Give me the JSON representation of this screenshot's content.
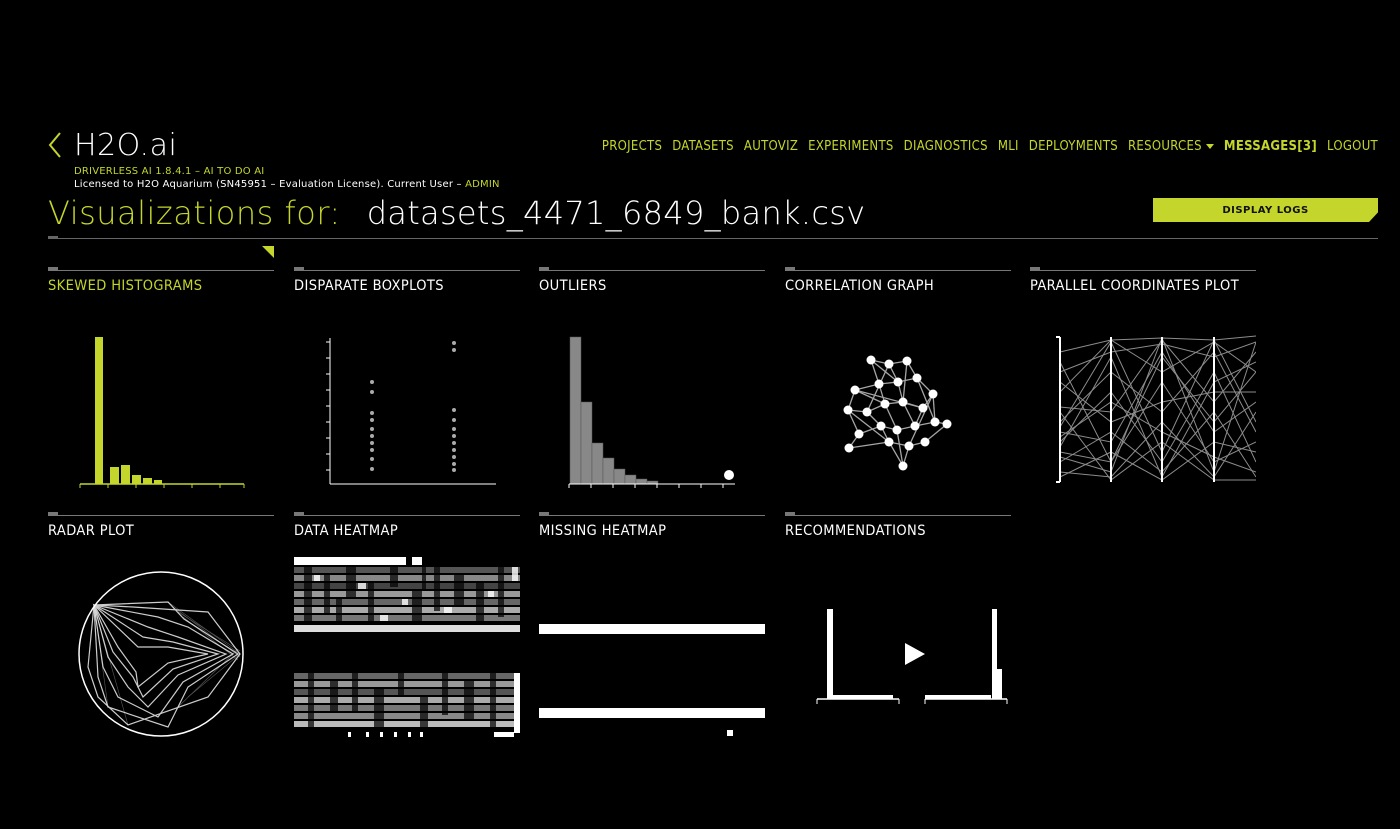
{
  "app": {
    "logo": "H2O.ai",
    "version_line": "DRIVERLESS AI 1.8.4.1 – AI TO DO AI",
    "license_prefix": "Licensed to H2O Aquarium (SN45951 – Evaluation License). Current User – ",
    "current_user": "ADMIN",
    "back_icon": "chevron-left-icon"
  },
  "nav": {
    "items": [
      "PROJECTS",
      "DATASETS",
      "AUTOVIZ",
      "EXPERIMENTS",
      "DIAGNOSTICS",
      "MLI",
      "DEPLOYMENTS",
      "RESOURCES",
      "MESSAGES[3]",
      "LOGOUT"
    ],
    "dropdown_icon": "caret-down-icon"
  },
  "page": {
    "title_label": "Visualizations for:",
    "dataset_name": "datasets_4471_6849_bank.csv",
    "display_logs_label": "DISPLAY LOGS"
  },
  "tiles": [
    {
      "label": "SKEWED HISTOGRAMS"
    },
    {
      "label": "DISPARATE BOXPLOTS"
    },
    {
      "label": "OUTLIERS"
    },
    {
      "label": "CORRELATION GRAPH"
    },
    {
      "label": "PARALLEL COORDINATES PLOT"
    },
    {
      "label": "RADAR PLOT"
    },
    {
      "label": "DATA HEATMAP"
    },
    {
      "label": "MISSING HEATMAP"
    },
    {
      "label": "RECOMMENDATIONS"
    }
  ],
  "colors": {
    "accent": "#c4d52b",
    "background": "#000000",
    "text": "#ffffff"
  }
}
